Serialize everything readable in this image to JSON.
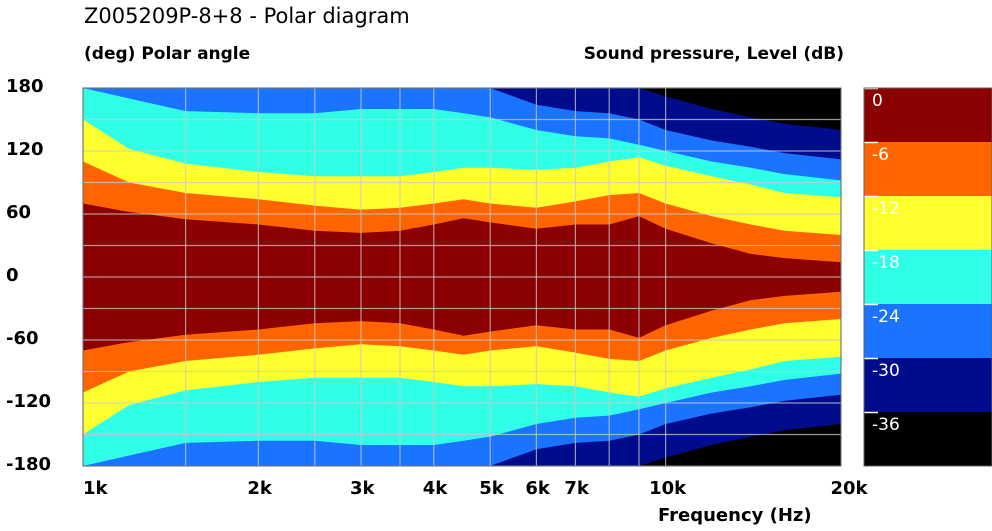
{
  "chart_data": {
    "type": "heatmap",
    "title": "Z005209P-8+8 - Polar diagram",
    "ylabel": "(deg)  Polar angle",
    "zlabel": "Sound pressure, Level  (dB)",
    "xlabel": "Frequency  (Hz)",
    "x_scale": "log",
    "xlim": [
      1000,
      20000
    ],
    "ylim": [
      -180,
      180
    ],
    "x_ticks": [
      {
        "value": 1000,
        "label": "1k"
      },
      {
        "value": 2000,
        "label": "2k"
      },
      {
        "value": 3000,
        "label": "3k"
      },
      {
        "value": 4000,
        "label": "4k"
      },
      {
        "value": 5000,
        "label": "5k"
      },
      {
        "value": 6000,
        "label": "6k"
      },
      {
        "value": 7000,
        "label": "7k"
      },
      {
        "value": 10000,
        "label": "10k"
      },
      {
        "value": 20000,
        "label": "20k"
      }
    ],
    "x_grid": [
      1000,
      1500,
      2000,
      2500,
      3000,
      3500,
      4000,
      5000,
      6000,
      7000,
      8000,
      9000,
      10000,
      20000
    ],
    "y_ticks": [
      180,
      120,
      60,
      0,
      -60,
      -120,
      -180
    ],
    "y_grid": [
      180,
      150,
      120,
      90,
      60,
      30,
      0,
      -30,
      -60,
      -90,
      -120,
      -150,
      -180
    ],
    "colorbar": [
      {
        "label": "0",
        "from": 0,
        "to": -6,
        "color": "#8b0000"
      },
      {
        "label": "-6",
        "from": -6,
        "to": -12,
        "color": "#ff6400"
      },
      {
        "label": "-12",
        "from": -12,
        "to": -18,
        "color": "#ffff30"
      },
      {
        "label": "-18",
        "from": -18,
        "to": -24,
        "color": "#30ffe8"
      },
      {
        "label": "-24",
        "from": -24,
        "to": -30,
        "color": "#1a74ff"
      },
      {
        "label": "-30",
        "from": -30,
        "to": -36,
        "color": "#000c8c"
      },
      {
        "label": "-36",
        "from": -36,
        "to": -42,
        "color": "#000000"
      }
    ],
    "contour_boundaries_deg": {
      "frequencies_hz": [
        1000,
        1200,
        1500,
        2000,
        2500,
        3000,
        3500,
        4000,
        4500,
        5000,
        6000,
        7000,
        8000,
        9000,
        10000,
        12000,
        14000,
        16000,
        20000
      ],
      "level_minus6_db": [
        70,
        62,
        55,
        50,
        44,
        42,
        44,
        50,
        56,
        52,
        46,
        50,
        50,
        58,
        46,
        32,
        22,
        18,
        14
      ],
      "level_minus12_db": [
        110,
        90,
        80,
        74,
        68,
        64,
        66,
        70,
        74,
        70,
        66,
        72,
        78,
        80,
        70,
        58,
        50,
        44,
        40
      ],
      "level_minus18_db": [
        150,
        122,
        108,
        100,
        96,
        96,
        96,
        100,
        104,
        104,
        102,
        104,
        110,
        114,
        106,
        96,
        88,
        80,
        76
      ],
      "level_minus24_db": [
        180,
        170,
        158,
        156,
        156,
        160,
        160,
        160,
        156,
        152,
        140,
        134,
        132,
        126,
        120,
        110,
        104,
        98,
        92
      ],
      "level_minus30_db": [
        180,
        180,
        180,
        180,
        180,
        180,
        180,
        180,
        180,
        180,
        164,
        158,
        156,
        150,
        140,
        130,
        124,
        118,
        112
      ],
      "level_minus36_db": [
        180,
        180,
        180,
        180,
        180,
        180,
        180,
        180,
        180,
        180,
        180,
        180,
        180,
        180,
        172,
        160,
        152,
        146,
        140
      ]
    }
  }
}
